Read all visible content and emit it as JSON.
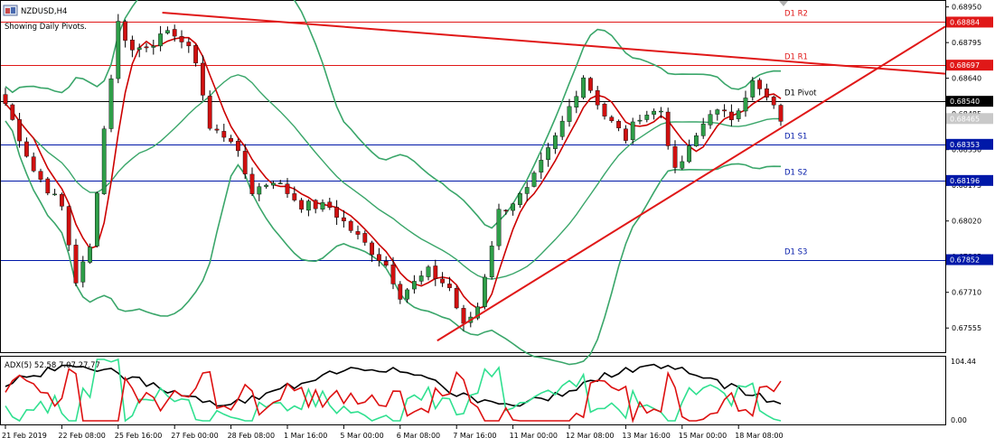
{
  "header": {
    "symbol": "NZDUSD,H4",
    "note": "Showing Daily Pivots."
  },
  "colors": {
    "background": "#ffffff",
    "bull": "#2e9e48",
    "bear": "#d01010",
    "bollinger": "#3aa66a",
    "ma": "#cc0000",
    "resistance": "#e01818",
    "support": "#0018a8",
    "adx_main": "#000000",
    "adx_plus": "#30e090",
    "adx_minus": "#dd1010"
  },
  "price_axis": {
    "ticks": [
      "0.68950",
      "0.68795",
      "0.68640",
      "0.68485",
      "0.68330",
      "0.68175",
      "0.68020",
      "0.67865",
      "0.67710",
      "0.67555"
    ],
    "range": [
      0.6745,
      0.6898
    ]
  },
  "pivots": [
    {
      "key": "r2",
      "label": "D1 R2",
      "value": 0.68884,
      "tag": "0.68884",
      "line": "#e01818",
      "text": "#e01818",
      "bg": "#e01818",
      "fg": "#ffffff"
    },
    {
      "key": "r1",
      "label": "D1 R1",
      "value": 0.68697,
      "tag": "0.68697",
      "line": "#e01818",
      "text": "#e01818",
      "bg": "#e01818",
      "fg": "#ffffff"
    },
    {
      "key": "pp",
      "label": "D1 Pivot",
      "value": 0.6854,
      "tag": "0.68540",
      "line": "#000000",
      "text": "#000000",
      "bg": "#000000",
      "fg": "#ffffff"
    },
    {
      "key": "s1",
      "label": "D1 S1",
      "value": 0.68353,
      "tag": "0.68353",
      "line": "#0018a8",
      "text": "#0018a8",
      "bg": "#0018a8",
      "fg": "#ffffff"
    },
    {
      "key": "s2",
      "label": "D1 S2",
      "value": 0.68196,
      "tag": "0.68196",
      "line": "#0018a8",
      "text": "#0018a8",
      "bg": "#0018a8",
      "fg": "#ffffff"
    },
    {
      "key": "s3",
      "label": "D1 S3",
      "value": 0.67852,
      "tag": "0.67852",
      "line": "#0018a8",
      "text": "#0018a8",
      "bg": "#0018a8",
      "fg": "#ffffff"
    }
  ],
  "current_price": {
    "value": 0.68465,
    "tag": "0.68465"
  },
  "trendlines": [
    {
      "name": "falling-resistance",
      "from": {
        "bar": 22,
        "price": 0.68925
      },
      "to": {
        "bar": 120,
        "price": 0.6866
      }
    },
    {
      "name": "rising-support",
      "from": {
        "bar": 61,
        "price": 0.675
      },
      "to": {
        "bar": 120,
        "price": 0.68865
      }
    }
  ],
  "time_axis": {
    "labels": [
      {
        "bar": 0,
        "text": "21 Feb 2019"
      },
      {
        "bar": 8,
        "text": "22 Feb 08:00"
      },
      {
        "bar": 16,
        "text": "25 Feb 16:00"
      },
      {
        "bar": 24,
        "text": "27 Feb 00:00"
      },
      {
        "bar": 32,
        "text": "28 Feb 08:00"
      },
      {
        "bar": 40,
        "text": "1 Mar 16:00"
      },
      {
        "bar": 48,
        "text": "5 Mar 00:00"
      },
      {
        "bar": 56,
        "text": "6 Mar 08:00"
      },
      {
        "bar": 64,
        "text": "7 Mar 16:00"
      },
      {
        "bar": 72,
        "text": "11 Mar 00:00"
      },
      {
        "bar": 80,
        "text": "12 Mar 08:00"
      },
      {
        "bar": 88,
        "text": "13 Mar 16:00"
      },
      {
        "bar": 96,
        "text": "15 Mar 00:00"
      },
      {
        "bar": 104,
        "text": "18 Mar 08:00"
      }
    ]
  },
  "adx": {
    "label": "ADX(5) 52.58 7.07 27.77",
    "axis_max": "104.44",
    "axis_min": "0.00",
    "range": [
      0,
      104.44
    ]
  }
}
